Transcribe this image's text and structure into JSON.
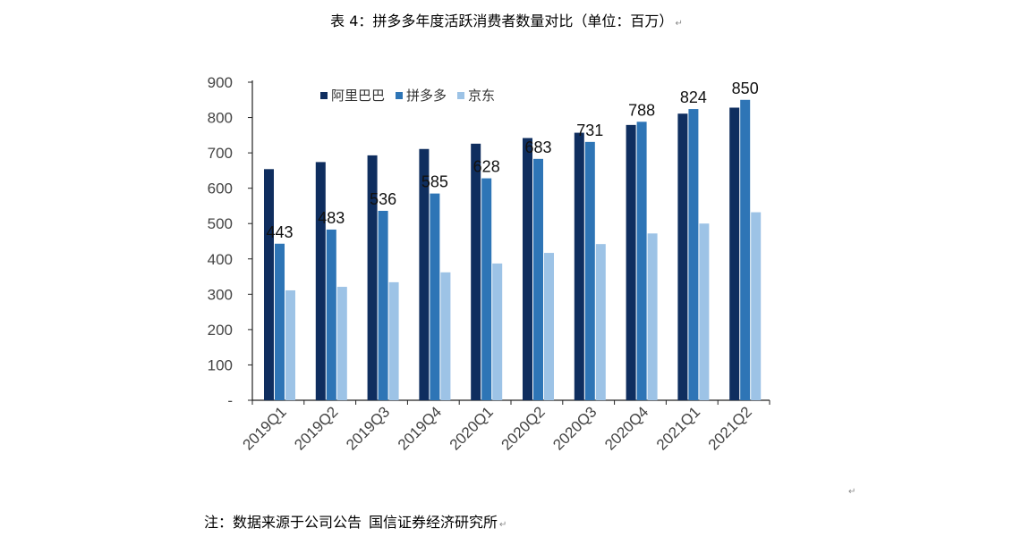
{
  "caption": {
    "title": "表 4：拼多多年度活跃消费者数量对比（单位：百万）",
    "para_mark": "↵"
  },
  "footer": {
    "note": "注：数据来源于公司公告",
    "source": "国信证券经济研究所",
    "para_mark": "↵",
    "stray_mark": "↵"
  },
  "chart_data": {
    "type": "bar",
    "title": "",
    "xlabel": "",
    "ylabel": "",
    "categories": [
      "2019Q1",
      "2019Q2",
      "2019Q3",
      "2019Q4",
      "2020Q1",
      "2020Q2",
      "2020Q3",
      "2020Q4",
      "2021Q1",
      "2021Q2"
    ],
    "series": [
      {
        "name": "阿里巴巴",
        "color": "#0f2e5f",
        "values": [
          654,
          674,
          693,
          711,
          726,
          742,
          757,
          779,
          811,
          828
        ],
        "show_labels": false
      },
      {
        "name": "拼多多",
        "color": "#2e75b6",
        "values": [
          443,
          483,
          536,
          585,
          628,
          683,
          731,
          788,
          824,
          850
        ],
        "show_labels": true
      },
      {
        "name": "京东",
        "color": "#9dc3e6",
        "values": [
          311,
          321,
          334,
          362,
          387,
          417,
          442,
          472,
          500,
          532
        ],
        "show_labels": false
      }
    ],
    "y_ticks": [
      "-",
      "100",
      "200",
      "300",
      "400",
      "500",
      "600",
      "700",
      "800",
      "900"
    ],
    "ylim": [
      0,
      900
    ],
    "grid": false,
    "legend_position": "top-left"
  }
}
